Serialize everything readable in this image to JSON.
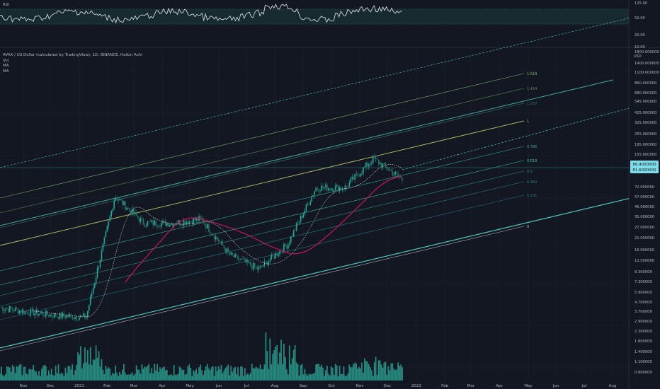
{
  "rsi_panel": {
    "label": "RSI",
    "ticks": [
      "125.00",
      "50.00",
      "20.00",
      "10.00"
    ]
  },
  "legend": {
    "title": "AVAX / US Dollar (calculated by TradingView), 1D, BINANCE, Heikin Ashi",
    "line2": "Vol",
    "line3": "MA",
    "line4": "MA"
  },
  "price_axis": {
    "unit": "USD",
    "ticks": [
      "1800.000000",
      "1400.000000",
      "1100.000000",
      "860.000000",
      "680.000000",
      "545.000000",
      "425.000000",
      "325.000000",
      "255.000000",
      "195.000000",
      "155.000000",
      "72.000000",
      "57.000000",
      "45.000000",
      "35.000000",
      "27.000000",
      "21.000000",
      "16.000000",
      "12.500000",
      "9.300000",
      "7.300000",
      "5.900000",
      "4.700000",
      "3.700000",
      "2.900000",
      "2.300000",
      "1.800000",
      "1.400000",
      "1.100000",
      "0.860000"
    ],
    "current_price_box": [
      "86.4000000",
      "81.6000000"
    ]
  },
  "time_axis": {
    "ticks": [
      "Nov",
      "Dec",
      "2021",
      "Feb",
      "Mar",
      "Apr",
      "May",
      "Jun",
      "Jul",
      "Aug",
      "Sep",
      "Oct",
      "Nov",
      "Dec",
      "2022",
      "Feb",
      "Mar",
      "Apr",
      "May",
      "Jun",
      "Jul",
      "Aug"
    ]
  },
  "colors": {
    "background": "#131722",
    "grid": "#1f2433",
    "channel_main": "#4dc8c0",
    "channel_upper": "#43a9a2",
    "fib_green": "#7fb36a",
    "fib_yellow": "#b8c168",
    "fib_teal": "#36a6a2",
    "ma_fast": "#c8c8c8",
    "ma_slow": "#c2185b",
    "candle": "#2e8b7a",
    "volume": "#2a9d8f",
    "rsi_line": "#d0d5dc",
    "rsi_band": "#1b3b3a"
  },
  "fib_levels": [
    {
      "label": "1.618",
      "color": "#7fb36a"
    },
    {
      "label": "1.414",
      "color": "#5d8c55"
    },
    {
      "label": "1.272",
      "color": "#3f7a72"
    },
    {
      "label": "1",
      "color": "#b8c168"
    },
    {
      "label": "0.786",
      "color": "#36a6a2"
    },
    {
      "label": "0.618",
      "color": "#3fb8a0"
    },
    {
      "label": "0.5",
      "color": "#2f8c88"
    },
    {
      "label": "0.382",
      "color": "#2a7f88"
    },
    {
      "label": "0.236",
      "color": "#28708a"
    },
    {
      "label": "0",
      "color": "#b2b5be"
    }
  ],
  "chart_data": {
    "type": "candlestick-log",
    "symbol": "AVAX / US Dollar",
    "interval": "1D",
    "exchange": "BINANCE",
    "price_range": [
      0.86,
      1800
    ],
    "approx_price_path": [
      {
        "date": "Oct",
        "price": 4.0
      },
      {
        "date": "Nov",
        "price": 3.6
      },
      {
        "date": "Dec",
        "price": 3.3
      },
      {
        "date": "2021",
        "price": 3.2
      },
      {
        "date": "Feb",
        "price": 57
      },
      {
        "date": "Mar",
        "price": 30
      },
      {
        "date": "Apr",
        "price": 30
      },
      {
        "date": "May",
        "price": 33
      },
      {
        "date": "Jun",
        "price": 14
      },
      {
        "date": "Jul",
        "price": 10
      },
      {
        "date": "Aug",
        "price": 18
      },
      {
        "date": "Sep",
        "price": 70
      },
      {
        "date": "Oct",
        "price": 70
      },
      {
        "date": "Nov",
        "price": 140
      },
      {
        "date": "Dec",
        "price": 85
      }
    ]
  }
}
